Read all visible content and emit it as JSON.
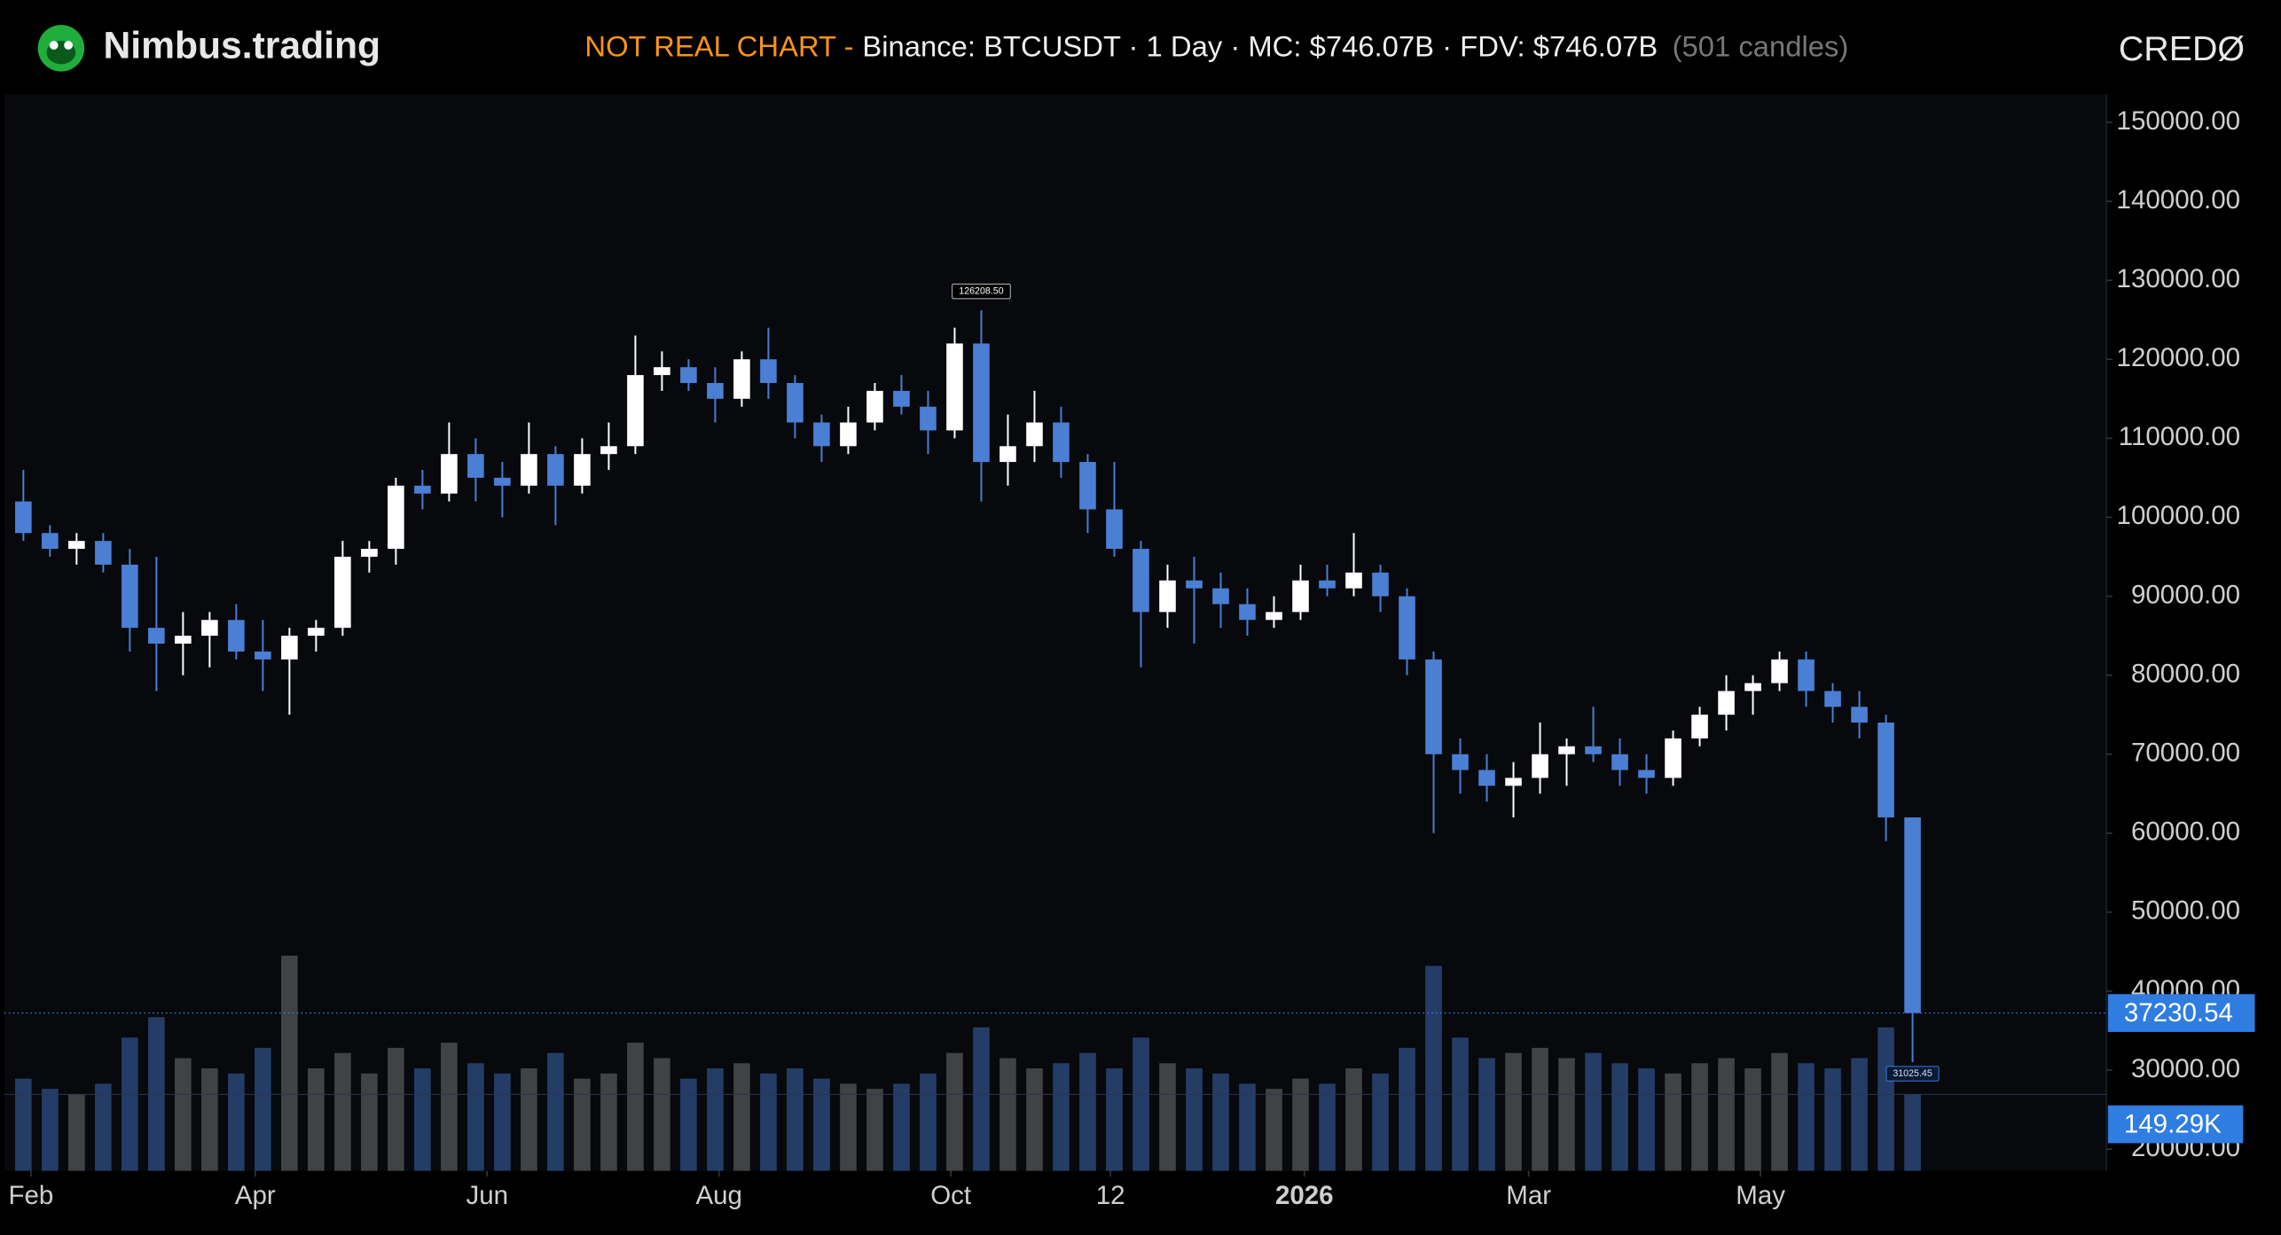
{
  "chart_data": {
    "type": "candlestick",
    "brand": "Nimbus.trading",
    "title_warning": "NOT REAL CHART -",
    "title": "Binance: BTCUSDT · 1 Day · MC: $746.07B · FDV: $746.07B",
    "subtitle": "(501 candles)",
    "logo_text": "CREDØ",
    "up_color": "#ffffff",
    "down_color": "#4a7fd4",
    "x": [
      3,
      10,
      17,
      24,
      31,
      38,
      45,
      52,
      59,
      66,
      73,
      80,
      87,
      94,
      101,
      108,
      115,
      122,
      129,
      136,
      143,
      150,
      157,
      164,
      171,
      178,
      185,
      192,
      199,
      206,
      213,
      220,
      227,
      234,
      241,
      248,
      255,
      262,
      269,
      276,
      283,
      290,
      297,
      304,
      311,
      318,
      325,
      332,
      339,
      346,
      353,
      360,
      367,
      374,
      381,
      388,
      395,
      402,
      409,
      416,
      423,
      430,
      437,
      444,
      451,
      458,
      465,
      472,
      479,
      486,
      493,
      500
    ],
    "open": [
      102000,
      98000,
      96000,
      97000,
      94000,
      86000,
      84000,
      85000,
      87000,
      83000,
      82000,
      85000,
      86000,
      95000,
      96000,
      104000,
      103000,
      108000,
      105000,
      104000,
      108000,
      104000,
      108000,
      109000,
      118000,
      119000,
      117000,
      115000,
      120000,
      117000,
      112000,
      109000,
      112000,
      116000,
      114000,
      111000,
      122000,
      107000,
      109000,
      112000,
      107000,
      101000,
      96000,
      88000,
      92000,
      91000,
      89000,
      87000,
      88000,
      92000,
      91000,
      93000,
      90000,
      82000,
      70000,
      68000,
      66000,
      67000,
      70000,
      71000,
      70000,
      68000,
      67000,
      72000,
      75000,
      78000,
      79000,
      82000,
      78000,
      76000,
      74000,
      62000
    ],
    "high": [
      106000,
      99000,
      98000,
      98000,
      96000,
      95000,
      88000,
      88000,
      89000,
      87000,
      86000,
      87000,
      97000,
      97000,
      105000,
      106000,
      112000,
      110000,
      107000,
      112000,
      109000,
      110000,
      112000,
      123000,
      121000,
      120000,
      119000,
      121000,
      124000,
      118000,
      113000,
      114000,
      117000,
      118000,
      116000,
      124000,
      126208.5,
      113000,
      116000,
      114000,
      108000,
      107000,
      97000,
      94000,
      95000,
      93000,
      91000,
      90000,
      94000,
      94000,
      98000,
      94000,
      91000,
      83000,
      72000,
      70000,
      69000,
      74000,
      72000,
      76000,
      72000,
      70000,
      73000,
      76000,
      80000,
      80000,
      83000,
      83000,
      79000,
      78000,
      75000,
      62000
    ],
    "low": [
      97000,
      95000,
      94000,
      93000,
      83000,
      78000,
      80000,
      81000,
      82000,
      78000,
      75000,
      83000,
      85000,
      93000,
      94000,
      101000,
      102000,
      102000,
      100000,
      103000,
      99000,
      103000,
      106000,
      108000,
      116000,
      116000,
      112000,
      114000,
      115000,
      110000,
      107000,
      108000,
      111000,
      113000,
      108000,
      110000,
      102000,
      104000,
      107000,
      105000,
      98000,
      95000,
      81000,
      86000,
      84000,
      86000,
      85000,
      86000,
      87000,
      90000,
      90000,
      88000,
      80000,
      60000,
      65000,
      64000,
      62000,
      65000,
      66000,
      69000,
      66000,
      65000,
      66000,
      71000,
      73000,
      75000,
      78000,
      76000,
      74000,
      72000,
      59000,
      31025.45
    ],
    "close": [
      98000,
      96000,
      97000,
      94000,
      86000,
      84000,
      85000,
      87000,
      83000,
      82000,
      85000,
      86000,
      95000,
      96000,
      104000,
      103000,
      108000,
      105000,
      104000,
      108000,
      104000,
      108000,
      109000,
      118000,
      119000,
      117000,
      115000,
      120000,
      117000,
      112000,
      109000,
      112000,
      116000,
      114000,
      111000,
      122000,
      107000,
      109000,
      112000,
      107000,
      101000,
      96000,
      88000,
      92000,
      91000,
      89000,
      87000,
      88000,
      92000,
      91000,
      93000,
      90000,
      82000,
      70000,
      68000,
      66000,
      67000,
      70000,
      71000,
      70000,
      68000,
      67000,
      72000,
      75000,
      78000,
      79000,
      82000,
      78000,
      76000,
      74000,
      62000,
      37230.54
    ],
    "volume": [
      180,
      160,
      150,
      170,
      260,
      300,
      220,
      200,
      190,
      240,
      420,
      200,
      230,
      190,
      240,
      200,
      250,
      210,
      190,
      200,
      230,
      180,
      190,
      250,
      220,
      180,
      200,
      210,
      190,
      200,
      180,
      170,
      160,
      170,
      190,
      230,
      280,
      220,
      200,
      210,
      230,
      200,
      260,
      210,
      200,
      190,
      170,
      160,
      180,
      170,
      200,
      190,
      240,
      400,
      260,
      220,
      230,
      240,
      220,
      230,
      210,
      200,
      190,
      210,
      220,
      200,
      230,
      210,
      200,
      220,
      280,
      149.29
    ],
    "peak_label": "126208.50",
    "volume_label": "149.29K",
    "xlim": [
      -2,
      551
    ],
    "xticks": [
      {
        "value": 5,
        "label": "Feb"
      },
      {
        "value": 64,
        "label": "Apr"
      },
      {
        "value": 125,
        "label": "Jun"
      },
      {
        "value": 186,
        "label": "Aug"
      },
      {
        "value": 247,
        "label": "Oct"
      },
      {
        "value": 289,
        "label": "12"
      },
      {
        "value": 340,
        "label": "2026"
      },
      {
        "value": 399,
        "label": "Mar"
      },
      {
        "value": 460,
        "label": "May"
      }
    ],
    "ylim": [
      17250,
      153500
    ],
    "yticks": [
      {
        "value": 150000,
        "label": "150000.00"
      },
      {
        "value": 140000,
        "label": "140000.00"
      },
      {
        "value": 130000,
        "label": "130000.00"
      },
      {
        "value": 120000,
        "label": "120000.00"
      },
      {
        "value": 110000,
        "label": "110000.00"
      },
      {
        "value": 100000,
        "label": "100000.00"
      },
      {
        "value": 90000,
        "label": "90000.00"
      },
      {
        "value": 80000,
        "label": "80000.00"
      },
      {
        "value": 70000,
        "label": "70000.00"
      },
      {
        "value": 60000,
        "label": "60000.00"
      },
      {
        "value": 50000,
        "label": "50000.00"
      },
      {
        "value": 40000,
        "label": "40000.00"
      },
      {
        "value": 30000,
        "label": "30000.00"
      },
      {
        "value": 20000,
        "label": "20000.00"
      }
    ]
  }
}
